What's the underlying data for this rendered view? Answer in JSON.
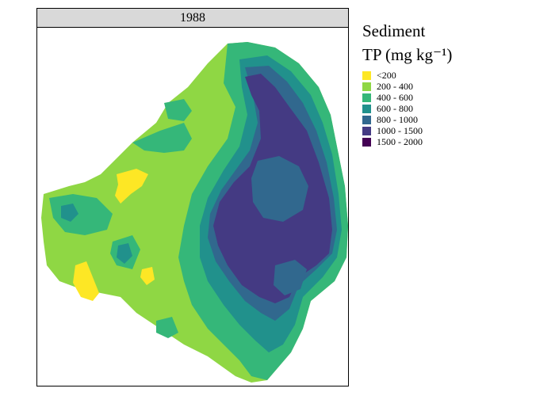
{
  "panel": {
    "strip_label": "1988"
  },
  "legend": {
    "title_line1": "Sediment",
    "title_line2": "TP (mg kg⁻¹)",
    "items": [
      {
        "label": "<200",
        "color": "#fde725"
      },
      {
        "label": "200 - 400",
        "color": "#8fd744"
      },
      {
        "label": "400 - 600",
        "color": "#35b779"
      },
      {
        "label": "600 - 800",
        "color": "#21918c"
      },
      {
        "label": "800 - 1000",
        "color": "#31688e"
      },
      {
        "label": "1000 - 1500",
        "color": "#443a83"
      },
      {
        "label": "1500 - 2000",
        "color": "#440154"
      }
    ]
  }
}
